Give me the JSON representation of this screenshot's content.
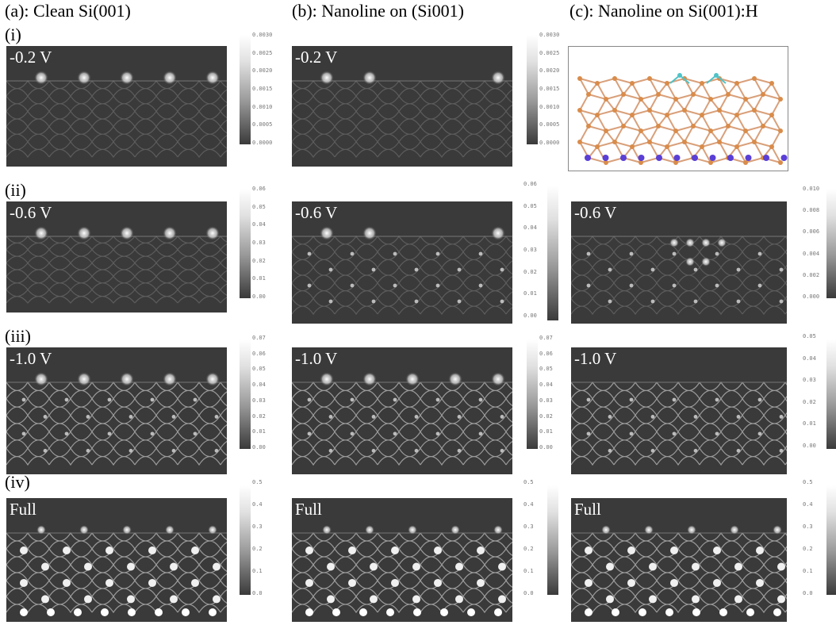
{
  "columns": [
    {
      "title": "(a): Clean Si(001)"
    },
    {
      "title": "(b): Nanoline on (Si001)"
    },
    {
      "title": "(c): Nanoline on Si(001):H"
    }
  ],
  "rows": [
    {
      "label": "(i)",
      "bias": "-0.2 V"
    },
    {
      "label": "(ii)",
      "bias": "-0.6 V"
    },
    {
      "label": "(iii)",
      "bias": "-1.0 V"
    },
    {
      "label": "(iv)",
      "bias": "Full"
    }
  ],
  "colorbars": {
    "row1_a": [
      "0.0030",
      "0.0025",
      "0.0020",
      "0.0015",
      "0.0010",
      "0.0005",
      "0.0000"
    ],
    "row1_b": [
      "0.0030",
      "0.0025",
      "0.0020",
      "0.0015",
      "0.0010",
      "0.0005",
      "0.0000"
    ],
    "row2_a": [
      "0.06",
      "0.05",
      "0.04",
      "0.03",
      "0.02",
      "0.01",
      "0.00"
    ],
    "row2_b": [
      "0.06",
      "0.05",
      "0.04",
      "0.03",
      "0.02",
      "0.01",
      "0.00"
    ],
    "row2_c": [
      "0.010",
      "0.008",
      "0.006",
      "0.004",
      "0.002",
      "0.000"
    ],
    "row3_a": [
      "0.07",
      "0.06",
      "0.05",
      "0.04",
      "0.03",
      "0.02",
      "0.01",
      "0.00"
    ],
    "row3_b": [
      "0.07",
      "0.06",
      "0.05",
      "0.04",
      "0.03",
      "0.02",
      "0.01",
      "0.00"
    ],
    "row3_c": [
      "0.05",
      "0.04",
      "0.03",
      "0.02",
      "0.01",
      "0.00"
    ],
    "row4_a": [
      "0.5",
      "0.4",
      "0.3",
      "0.2",
      "0.1",
      "0.0"
    ],
    "row4_b": [
      "0.5",
      "0.4",
      "0.3",
      "0.2",
      "0.1",
      "0.0"
    ],
    "row4_c": [
      "0.5",
      "0.4",
      "0.3",
      "0.2",
      "0.1",
      "0.0"
    ]
  },
  "colors": {
    "panel_bg": "#3a3a3a",
    "atom_si": "#d98c4a",
    "atom_h": "#4fc3c8",
    "atom_bottom": "#5a3fd6",
    "bond": "#d9a07a"
  }
}
